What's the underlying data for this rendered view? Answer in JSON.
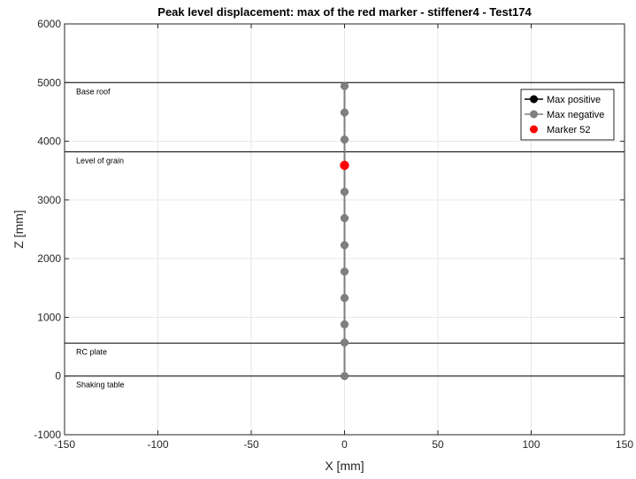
{
  "chart_data": {
    "type": "scatter",
    "title": "Peak level displacement: max of the red marker - stiffener4 - Test174",
    "xlabel": "X [mm]",
    "ylabel": "Z [mm]",
    "xlim": [
      -150,
      150
    ],
    "ylim": [
      -1000,
      6000
    ],
    "x_ticks": [
      "-150",
      "-100",
      "-50",
      "0",
      "50",
      "100",
      "150"
    ],
    "y_ticks": [
      "-1000",
      "0",
      "1000",
      "2000",
      "3000",
      "4000",
      "5000",
      "6000"
    ],
    "grid": true,
    "legend_position": "top-right",
    "reference_lines": [
      {
        "label": "Base roof",
        "z": 5000
      },
      {
        "label": "Level of grain",
        "z": 3820
      },
      {
        "label": "RC plate",
        "z": 560
      },
      {
        "label": "Shaking table",
        "z": 0
      }
    ],
    "series": [
      {
        "name": "Max positive",
        "color": "#000000",
        "x": [
          0,
          0,
          0,
          0,
          0,
          0,
          0,
          0,
          0,
          0,
          0,
          0
        ],
        "z": [
          0,
          570,
          880,
          1330,
          1780,
          2230,
          2690,
          3140,
          3590,
          4030,
          4490,
          4940
        ]
      },
      {
        "name": "Max negative",
        "color": "#7f7f7f",
        "x": [
          0,
          0,
          0,
          0,
          0,
          0,
          0,
          0,
          0,
          0,
          0,
          0
        ],
        "z": [
          0,
          570,
          880,
          1330,
          1780,
          2230,
          2690,
          3140,
          3590,
          4030,
          4490,
          4940
        ]
      },
      {
        "name": "Marker 52",
        "color": "#ff0000",
        "x": [
          0
        ],
        "z": [
          3590
        ]
      }
    ]
  }
}
